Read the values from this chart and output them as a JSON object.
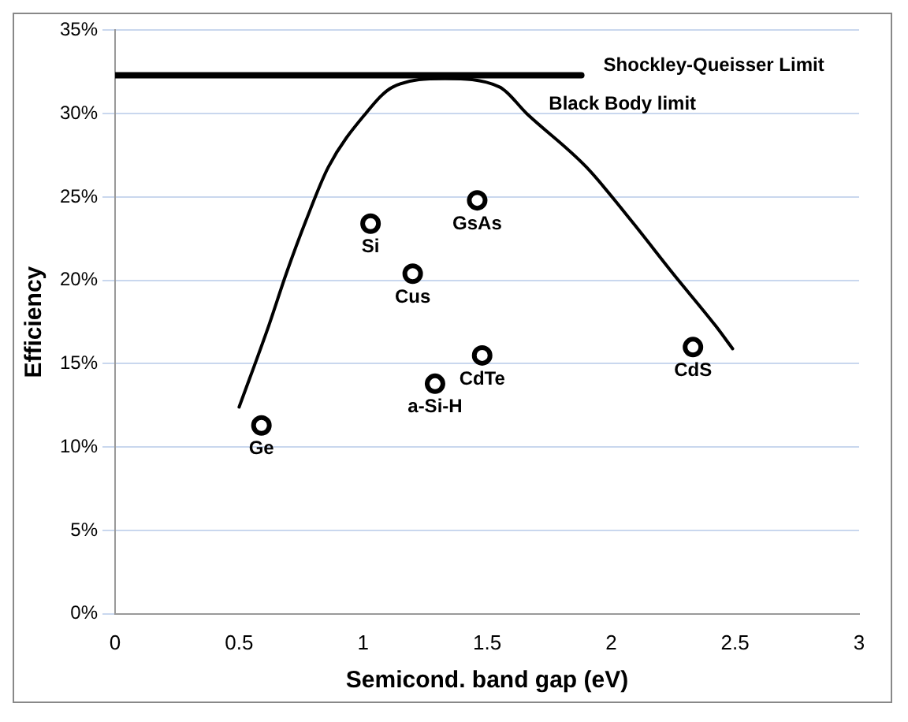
{
  "chart_data": {
    "type": "scatter",
    "xlabel": "Semicond. band gap (eV)",
    "ylabel": "Efficiency",
    "xlim": [
      0,
      3
    ],
    "xticks": [
      0,
      0.5,
      1,
      1.5,
      2,
      2.5,
      3
    ],
    "ylim": [
      0,
      35
    ],
    "yticks": [
      {
        "value": 0,
        "label": "0%"
      },
      {
        "value": 5,
        "label": "5%"
      },
      {
        "value": 10,
        "label": "10%"
      },
      {
        "value": 15,
        "label": "15%"
      },
      {
        "value": 20,
        "label": "20%"
      },
      {
        "value": 25,
        "label": "25%"
      },
      {
        "value": 30,
        "label": "30%"
      },
      {
        "value": 35,
        "label": "35%"
      }
    ],
    "grid": "y",
    "legend": false,
    "series": [
      {
        "type": "scatter",
        "marker": "circle",
        "color": "#000000",
        "x": [
          0.59,
          1.03,
          1.2,
          1.46,
          1.29,
          1.48,
          2.33
        ],
        "values": [
          11.3,
          23.4,
          20.4,
          24.8,
          13.8,
          15.5,
          16.0
        ]
      },
      {
        "type": "line",
        "name": "Black Body limit",
        "color": "#000000",
        "x": [
          0.5,
          0.62,
          0.69,
          0.77,
          0.86,
          1.01,
          1.12,
          1.33,
          1.55,
          1.66,
          1.9,
          2.08,
          2.25,
          2.42,
          2.49
        ],
        "values": [
          12.4,
          17.3,
          20.4,
          23.6,
          26.8,
          30.0,
          31.6,
          32.1,
          31.6,
          30.0,
          26.8,
          23.6,
          20.4,
          17.3,
          15.9
        ]
      },
      {
        "type": "line",
        "name": "Shockley-Queisser Limit",
        "color": "#000000",
        "x": [
          0,
          1.88
        ],
        "values": [
          32.3,
          32.3
        ]
      }
    ],
    "annotations": [
      {
        "text": "Ge",
        "x": 0.59,
        "y": 11.3
      },
      {
        "text": "Si",
        "x": 1.03,
        "y": 23.4
      },
      {
        "text": "Cus",
        "x": 1.2,
        "y": 20.4
      },
      {
        "text": "GsAs",
        "x": 1.46,
        "y": 24.8
      },
      {
        "text": "a-Si-H",
        "x": 1.29,
        "y": 13.8
      },
      {
        "text": "CdTe",
        "x": 1.48,
        "y": 15.5
      },
      {
        "text": "CdS",
        "x": 2.33,
        "y": 16.0
      }
    ]
  }
}
